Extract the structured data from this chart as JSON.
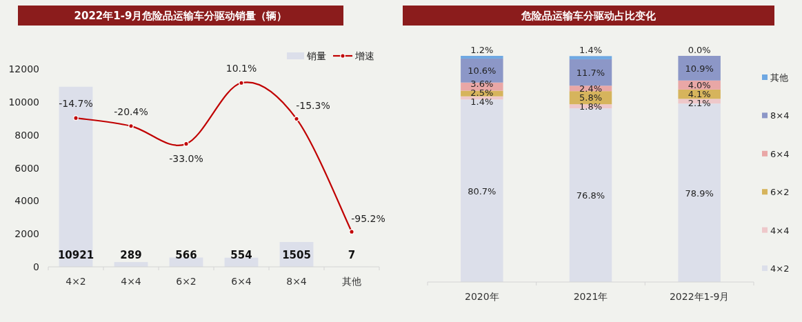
{
  "chart_data": [
    {
      "type": "bar",
      "title": "2022年1-9月危险品运输车分驱动销量（辆）",
      "categories": [
        "4×2",
        "4×4",
        "6×2",
        "6×4",
        "8×4",
        "其他"
      ],
      "series": [
        {
          "name": "销量",
          "type": "bar",
          "color": "#dcdfea",
          "values": [
            10921,
            289,
            566,
            554,
            1505,
            7
          ],
          "value_labels": [
            "10921",
            "289",
            "566",
            "554",
            "1505",
            "7"
          ]
        },
        {
          "name": "增速",
          "type": "line",
          "axis": "y2",
          "color": "#c00000",
          "values": [
            -14.7,
            -20.4,
            -33.0,
            10.1,
            -15.3,
            -95.2
          ],
          "value_labels": [
            "-14.7%",
            "-20.4%",
            "-33.0%",
            "10.1%",
            "-15.3%",
            "-95.2%"
          ]
        }
      ],
      "ylim": [
        0,
        12000
      ],
      "yticks": [
        0,
        2000,
        4000,
        6000,
        8000,
        10000,
        12000
      ],
      "legend": "top right",
      "marker": "circle"
    },
    {
      "type": "bar",
      "stacked": true,
      "title": "危险品运输车分驱动占比变化",
      "categories": [
        "2020年",
        "2021年",
        "2022年1-9月"
      ],
      "series": [
        {
          "name": "4×2",
          "color": "#dcdfea",
          "values": [
            80.7,
            76.8,
            78.9
          ],
          "value_labels": [
            "80.7%",
            "76.8%",
            "78.9%"
          ]
        },
        {
          "name": "4×4",
          "color": "#eec8ca",
          "values": [
            1.4,
            1.8,
            2.1
          ],
          "value_labels": [
            "1.4%",
            "1.8%",
            "2.1%"
          ]
        },
        {
          "name": "6×2",
          "color": "#d6b45c",
          "values": [
            2.5,
            5.8,
            4.1
          ],
          "value_labels": [
            "2.5%",
            "5.8%",
            "4.1%"
          ]
        },
        {
          "name": "6×4",
          "color": "#e9a7a6",
          "values": [
            3.6,
            2.4,
            4.0
          ],
          "value_labels": [
            "3.6%",
            "2.4%",
            "4.0%"
          ]
        },
        {
          "name": "8×4",
          "color": "#8c97c7",
          "values": [
            10.6,
            11.7,
            10.9
          ],
          "value_labels": [
            "10.6%",
            "11.7%",
            "10.9%"
          ]
        },
        {
          "name": "其他",
          "color": "#6fa8e2",
          "values": [
            1.2,
            1.4,
            0.0
          ],
          "value_labels": [
            "1.2%",
            "1.4%",
            "0.0%"
          ]
        }
      ],
      "ylim": [
        0,
        100
      ],
      "tick_labels": "x",
      "legend": "right"
    }
  ]
}
